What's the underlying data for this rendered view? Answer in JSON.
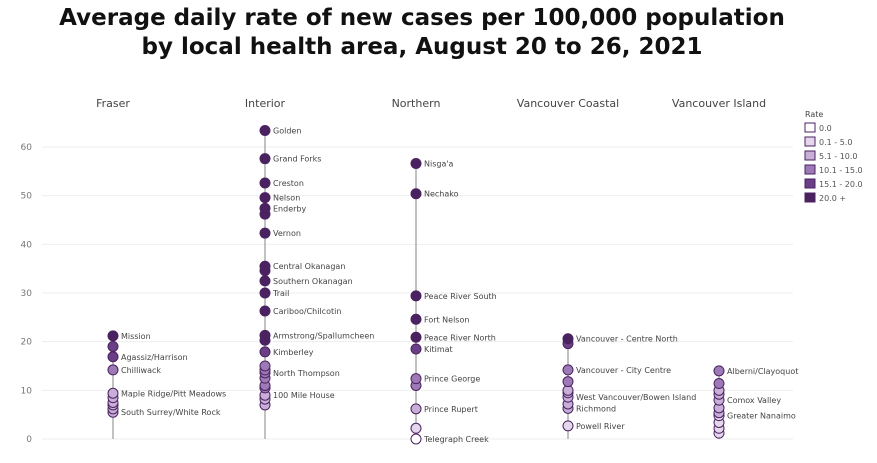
{
  "title_line1": "Average daily rate of new cases per 100,000 population",
  "title_line2": "by local health area, August 20 to 26, 2021",
  "colors": {
    "bin0": "#ffffff",
    "bin1": "#e4d7ec",
    "bin2": "#c8afd8",
    "bin3": "#9d79b5",
    "bin4": "#6b3f86",
    "bin5": "#4a2260",
    "stroke": "#4a2260",
    "axis_line": "#9a9a9a",
    "grid": "#eeeeee"
  },
  "legend": {
    "title": "Rate",
    "items": [
      {
        "label": "0.0",
        "color": "#ffffff"
      },
      {
        "label": "0.1 - 5.0",
        "color": "#e4d7ec"
      },
      {
        "label": "5.1 - 10.0",
        "color": "#c8afd8"
      },
      {
        "label": "10.1 - 15.0",
        "color": "#9d79b5"
      },
      {
        "label": "15.1 - 20.0",
        "color": "#6b3f86"
      },
      {
        "label": "20.0 +",
        "color": "#4a2260"
      }
    ]
  },
  "chart_data": {
    "type": "scatter",
    "title": "Average daily rate of new cases per 100,000 population by local health area, August 20 to 26, 2021",
    "categories": [
      "Fraser",
      "Interior",
      "Northern",
      "Vancouver Coastal",
      "Vancouver Island"
    ],
    "yticks": [
      0,
      10,
      20,
      30,
      40,
      50,
      60
    ],
    "ylim": [
      0,
      64
    ],
    "grid": true,
    "legend_position": "right",
    "series": [
      {
        "region": "Fraser",
        "points": [
          {
            "y": 21.2,
            "label": "Mission"
          },
          {
            "y": 19.0
          },
          {
            "y": 16.9,
            "label": "Agassiz/Harrison"
          },
          {
            "y": 14.2,
            "label": "Chilliwack"
          },
          {
            "y": 9.4,
            "label": "Maple Ridge/Pitt Meadows"
          },
          {
            "y": 8.5
          },
          {
            "y": 7.5
          },
          {
            "y": 7.0
          },
          {
            "y": 6.2
          },
          {
            "y": 5.5,
            "label": "South Surrey/White Rock"
          }
        ]
      },
      {
        "region": "Interior",
        "points": [
          {
            "y": 63.4,
            "label": "Golden"
          },
          {
            "y": 57.6,
            "label": "Grand Forks"
          },
          {
            "y": 52.6,
            "label": "Creston"
          },
          {
            "y": 49.6,
            "label": "Nelson"
          },
          {
            "y": 47.4,
            "label": "Enderby"
          },
          {
            "y": 46.2
          },
          {
            "y": 42.3,
            "label": "Vernon"
          },
          {
            "y": 35.5,
            "label": "Central Okanagan"
          },
          {
            "y": 34.6
          },
          {
            "y": 32.5,
            "label": "Southern Okanagan"
          },
          {
            "y": 30.0,
            "label": "Trail"
          },
          {
            "y": 26.3,
            "label": "Cariboo/Chilcotin"
          },
          {
            "y": 21.3,
            "label": "Armstrong/Spallumcheen"
          },
          {
            "y": 20.3
          },
          {
            "y": 17.9,
            "label": "Kimberley"
          },
          {
            "y": 15.0
          },
          {
            "y": 14.2
          },
          {
            "y": 13.6,
            "label": "North Thompson"
          },
          {
            "y": 12.5
          },
          {
            "y": 11.0
          },
          {
            "y": 10.5
          },
          {
            "y": 9.0,
            "label": "100 Mile House"
          },
          {
            "y": 8.2
          },
          {
            "y": 7.0
          }
        ]
      },
      {
        "region": "Northern",
        "points": [
          {
            "y": 56.6,
            "label": "Nisga'a"
          },
          {
            "y": 50.4,
            "label": "Nechako"
          },
          {
            "y": 29.4,
            "label": "Peace River South"
          },
          {
            "y": 24.6,
            "label": "Fort Nelson"
          },
          {
            "y": 20.9,
            "label": "Peace River North"
          },
          {
            "y": 18.5,
            "label": "Kitimat"
          },
          {
            "y": 12.4,
            "label": "Prince George"
          },
          {
            "y": 11.0
          },
          {
            "y": 6.2,
            "label": "Prince Rupert"
          },
          {
            "y": 2.2
          },
          {
            "y": 0.0,
            "label": "Telegraph Creek"
          }
        ]
      },
      {
        "region": "Vancouver Coastal",
        "points": [
          {
            "y": 20.6,
            "label": "Vancouver - Centre North"
          },
          {
            "y": 19.6
          },
          {
            "y": 14.2,
            "label": "Vancouver - City Centre"
          },
          {
            "y": 11.8
          },
          {
            "y": 10.0
          },
          {
            "y": 9.5
          },
          {
            "y": 8.6,
            "label": "West Vancouver/Bowen Island"
          },
          {
            "y": 7.2
          },
          {
            "y": 6.3,
            "label": "Richmond"
          },
          {
            "y": 2.7,
            "label": "Powell River"
          }
        ]
      },
      {
        "region": "Vancouver Island",
        "points": [
          {
            "y": 14.0,
            "label": "Alberni/Clayoquot"
          },
          {
            "y": 11.4
          },
          {
            "y": 10.0
          },
          {
            "y": 9.2
          },
          {
            "y": 8.0,
            "label": "Comox Valley"
          },
          {
            "y": 6.4
          },
          {
            "y": 5.4
          },
          {
            "y": 4.8,
            "label": "Greater Nanaimo"
          },
          {
            "y": 3.4
          },
          {
            "y": 2.2
          },
          {
            "y": 1.2
          }
        ]
      }
    ]
  }
}
